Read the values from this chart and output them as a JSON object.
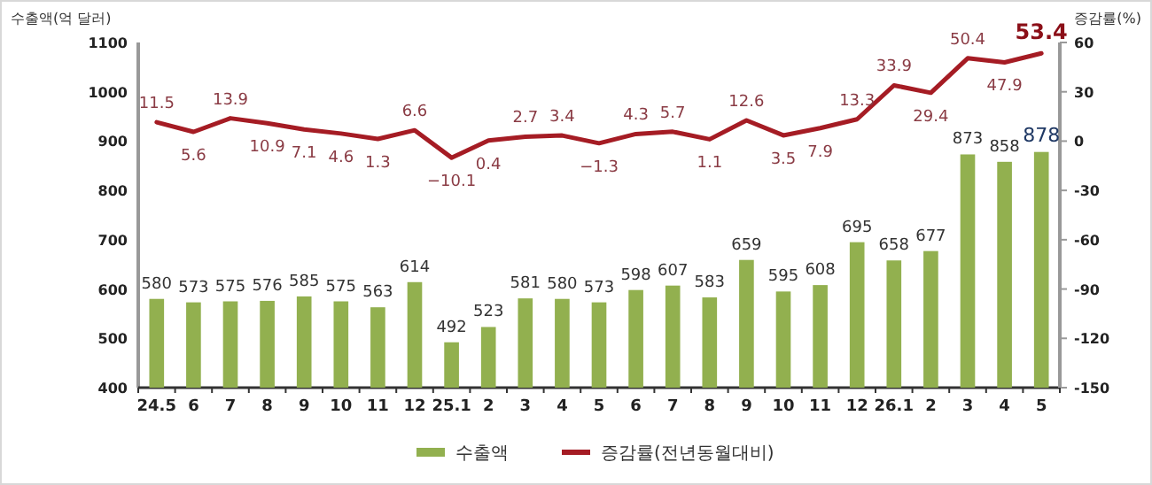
{
  "chart_data": {
    "type": "bar",
    "ylabel": "수출액(억 달러)",
    "y2label": "증감률(%)",
    "categories": [
      "24.5",
      "6",
      "7",
      "8",
      "9",
      "10",
      "11",
      "12",
      "25.1",
      "2",
      "3",
      "4",
      "5",
      "6",
      "7",
      "8",
      "9",
      "10",
      "11",
      "12",
      "26.1",
      "2",
      "3",
      "4",
      "5"
    ],
    "series": [
      {
        "name": "수출액",
        "color": "#92b04f",
        "values": [
          580,
          573,
          575,
          576,
          585,
          575,
          563,
          614,
          492,
          523,
          581,
          580,
          573,
          598,
          607,
          583,
          659,
          595,
          608,
          695,
          658,
          677,
          873,
          858,
          878
        ]
      },
      {
        "name": "증감률(전년동월대비)",
        "type": "line",
        "axis": "y2",
        "color": "#a51c24",
        "values": [
          11.5,
          5.6,
          13.9,
          10.9,
          7.1,
          4.6,
          1.3,
          6.6,
          -10.1,
          0.4,
          2.7,
          3.4,
          -1.3,
          4.3,
          5.7,
          1.1,
          12.6,
          3.5,
          7.9,
          13.3,
          33.9,
          29.4,
          50.4,
          47.9,
          53.4
        ]
      }
    ],
    "ylim": [
      400,
      1100
    ],
    "yticks": [
      400,
      500,
      600,
      700,
      800,
      900,
      1000,
      1100
    ],
    "y2lim": [
      -150,
      60
    ],
    "y2ticks": [
      -150,
      -120,
      -90,
      -60,
      -30,
      0,
      30,
      60
    ],
    "data_labels": true,
    "legend": "bottom",
    "grid": false
  }
}
